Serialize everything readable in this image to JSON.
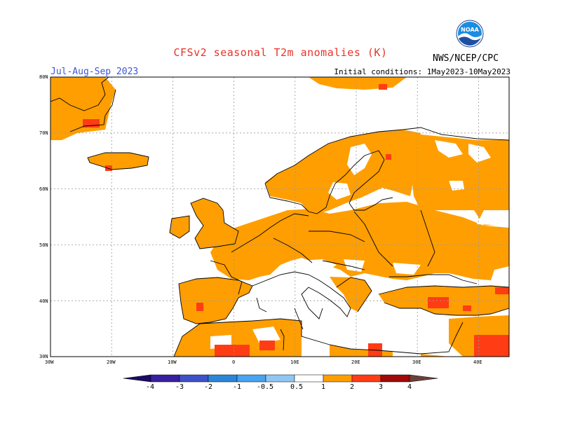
{
  "title": "CFSv2 seasonal T2m anomalies (K)",
  "agency": "NWS/NCEP/CPC",
  "logo_text": "NOAA",
  "period": "Jul-Aug-Sep 2023",
  "initial_conditions": "Initial conditions: 1May2023-10May2023",
  "map": {
    "lon_range": [
      -30,
      45
    ],
    "lat_range": [
      30,
      80
    ],
    "lat_labels": [
      "80N",
      "70N",
      "60N",
      "50N",
      "40N",
      "30N"
    ],
    "lon_labels": [
      "30W",
      "20W",
      "10W",
      "0",
      "10E",
      "20E",
      "30E",
      "40E"
    ],
    "gridlines": true
  },
  "colorbar": {
    "labels": [
      "-4",
      "-3",
      "-2",
      "-1",
      "-0.5",
      "0.5",
      "1",
      "2",
      "3",
      "4"
    ],
    "colors": [
      "#3a1fa0",
      "#3d51c8",
      "#2a86d8",
      "#46a4f0",
      "#8fc6f5",
      "#ffffff",
      "#ff9e00",
      "#ff3c14",
      "#a00a0a",
      "#c4a092"
    ],
    "low_cap_color": "#1b0a66",
    "high_cap_color": "#6b4038"
  },
  "colors": {
    "anomaly_0_5_to_1": "#ff9e00",
    "anomaly_1_to_2": "#ff3c14",
    "title": "#e8332a",
    "period": "#3c56d6"
  }
}
